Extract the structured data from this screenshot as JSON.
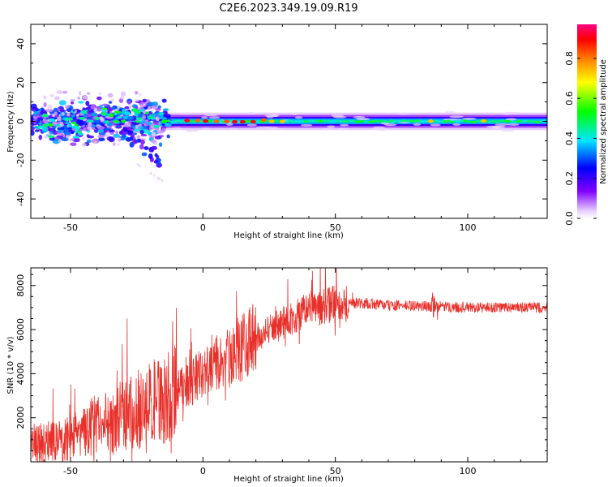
{
  "title": "C2E6.2023.349.19.09.R19",
  "chart_data": [
    {
      "type": "heatmap",
      "name": "spectrogram",
      "xlabel": "Height of straight line (km)",
      "ylabel": "Frequency (Hz)",
      "xlim": [
        -65,
        130
      ],
      "ylim": [
        -50,
        50
      ],
      "xticks": [
        -50,
        0,
        50,
        100
      ],
      "yticks": [
        -40,
        -20,
        0,
        20,
        40
      ],
      "colorbar": {
        "label": "Normalized spectral amplitude",
        "range": [
          0,
          0.97
        ],
        "ticks": [
          0.0,
          0.2,
          0.4,
          0.6,
          0.8
        ],
        "colormap": [
          "#ffffff",
          "#d9b3ff",
          "#8000ff",
          "#0000ff",
          "#00e5ff",
          "#00ff00",
          "#ffff00",
          "#ff8000",
          "#ff0000",
          "#ff0080"
        ]
      },
      "features": [
        {
          "x_range": [
            -65,
            -15
          ],
          "freq_range": [
            -10,
            8
          ],
          "description_level": "high scattered"
        },
        {
          "x_range": [
            -28,
            -18
          ],
          "freq_range": [
            -20,
            -12
          ],
          "description_level": "branch"
        },
        {
          "x_range": [
            -15,
            130
          ],
          "freq_range": [
            -2,
            2
          ],
          "description_level": "steady line at 0 Hz"
        }
      ]
    },
    {
      "type": "line",
      "name": "snr",
      "xlabel": "Height of straight line (km)",
      "ylabel": "SNR (10 * v/v)",
      "xlim": [
        -65,
        130
      ],
      "ylim": [
        0,
        8800
      ],
      "xticks": [
        -50,
        0,
        50,
        100
      ],
      "yticks": [
        2000,
        4000,
        6000,
        8000
      ],
      "color": "#e8302a",
      "trend": [
        {
          "x": -65,
          "y": 800
        },
        {
          "x": -50,
          "y": 1000
        },
        {
          "x": -40,
          "y": 1700
        },
        {
          "x": -30,
          "y": 2100
        },
        {
          "x": -20,
          "y": 2600
        },
        {
          "x": -12,
          "y": 3000
        },
        {
          "x": 0,
          "y": 4000
        },
        {
          "x": 10,
          "y": 4800
        },
        {
          "x": 20,
          "y": 5600
        },
        {
          "x": 30,
          "y": 6300
        },
        {
          "x": 40,
          "y": 6900
        },
        {
          "x": 50,
          "y": 7200
        },
        {
          "x": 60,
          "y": 7200
        },
        {
          "x": 70,
          "y": 7100
        },
        {
          "x": 85,
          "y": 7050
        },
        {
          "x": 100,
          "y": 7000
        },
        {
          "x": 115,
          "y": 7000
        },
        {
          "x": 130,
          "y": 7000
        }
      ]
    }
  ]
}
